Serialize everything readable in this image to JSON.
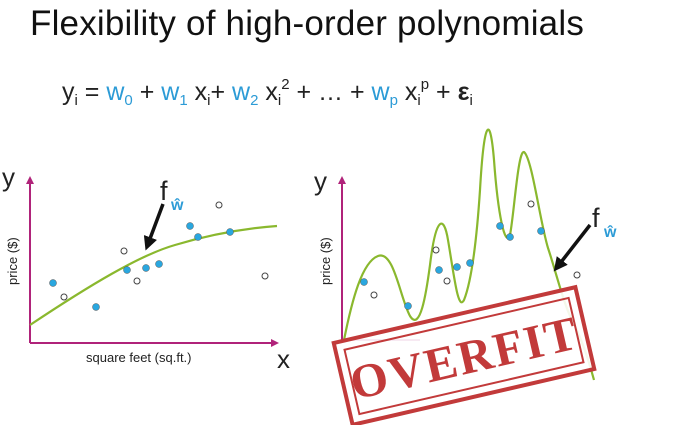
{
  "title": "Flexibility of high-order polynomials",
  "equation": {
    "lhs": "y",
    "lhs_sub": "i",
    "equals": " = ",
    "w0": "w",
    "w0_sub": "0",
    "plus1": " + ",
    "w1": "w",
    "w1_sub": "1",
    "x1": " x",
    "x1_sub": "i",
    "plus2": "+ ",
    "w2": "w",
    "w2_sub": "2",
    "x2": " x",
    "x2_sub": "i",
    "x2_sup": "2",
    "ellipsis": " + … + ",
    "wp": "w",
    "wp_sub": "p",
    "xp": " x",
    "xp_sub": "i",
    "xp_sup": "p",
    "plus_eps": " + ",
    "eps": "ε",
    "eps_sub": "i"
  },
  "left_plot": {
    "y_axis_letter": "y",
    "x_axis_letter": "x",
    "y_label": "price ($)",
    "x_label": "square feet (sq.ft.)",
    "fit_label": "f",
    "fit_label_sub": "ŵ"
  },
  "right_plot": {
    "y_axis_letter": "y",
    "y_label": "price ($)",
    "fit_label": "f",
    "fit_label_sub": "ŵ"
  },
  "stamp": {
    "text": "OVERFIT"
  },
  "colors": {
    "axis": "#b0237a",
    "curve": "#8ab82e",
    "blue_point": "#2aa7df",
    "white_point": "#ffffff",
    "stamp": "#c23a3a",
    "weight": "#2c9bd6"
  }
}
